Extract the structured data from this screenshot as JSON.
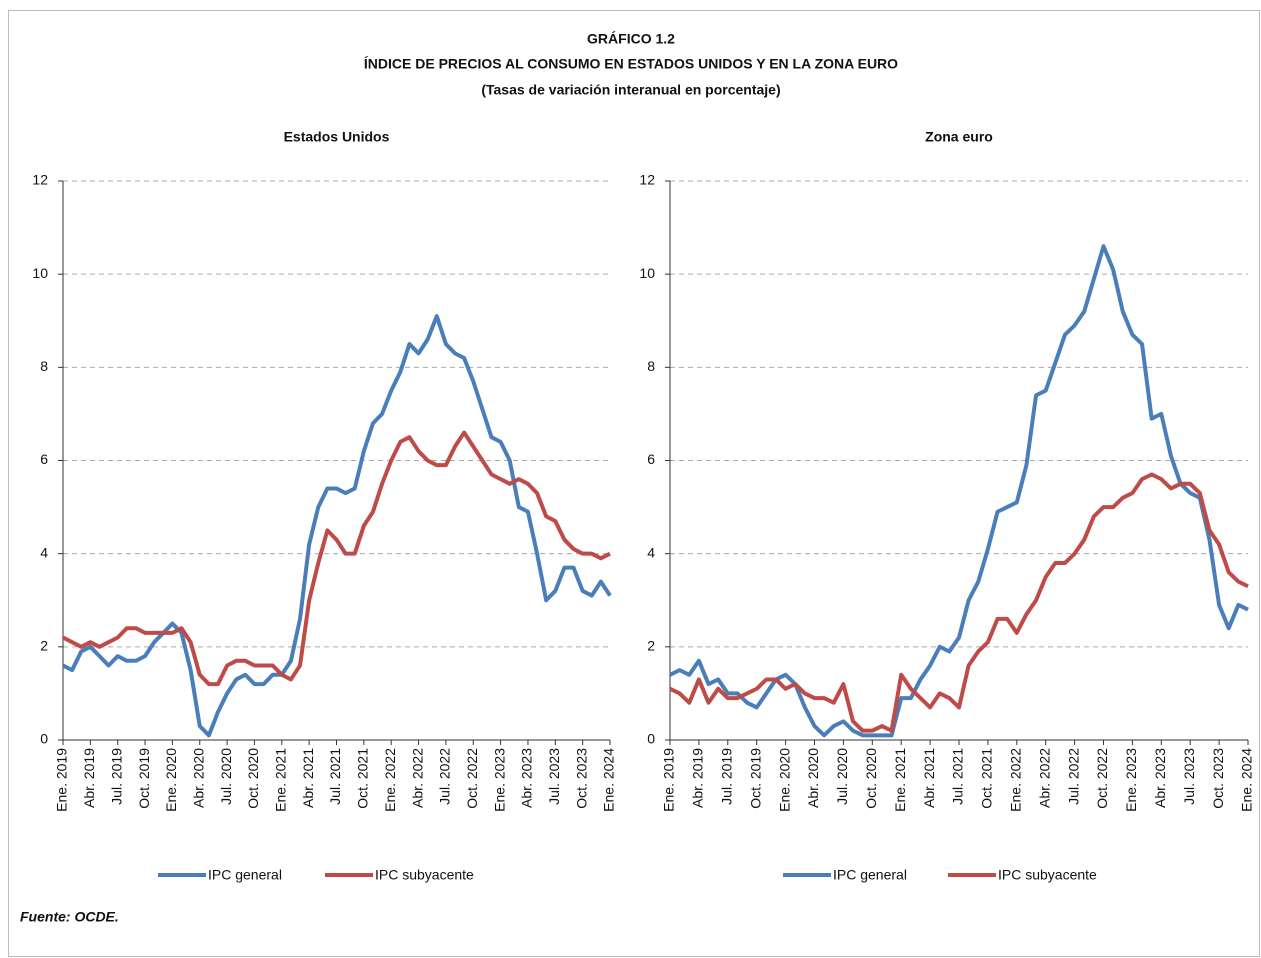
{
  "header": {
    "title": "GRÁFICO 1.2",
    "subtitle": "ÍNDICE DE PRECIOS AL CONSUMO EN ESTADOS UNIDOS Y EN LA ZONA EURO",
    "note": "(Tasas de variación interanual en porcentaje)"
  },
  "chart_data": [
    {
      "type": "line",
      "title": "Estados Unidos",
      "categories": [
        "Ene. 2019",
        null,
        null,
        "Abr. 2019",
        null,
        null,
        "Jul. 2019",
        null,
        null,
        "Oct. 2019",
        null,
        null,
        "Ene. 2020",
        null,
        null,
        "Abr. 2020",
        null,
        null,
        "Jul. 2020",
        null,
        null,
        "Oct. 2020",
        null,
        null,
        "Ene. 2021",
        null,
        null,
        "Abr. 2021",
        null,
        null,
        "Jul. 2021",
        null,
        null,
        "Oct. 2021",
        null,
        null,
        "Ene. 2022",
        null,
        null,
        "Abr. 2022",
        null,
        null,
        "Jul. 2022",
        null,
        null,
        "Oct. 2022",
        null,
        null,
        "Ene. 2023",
        null,
        null,
        "Abr. 2023",
        null,
        null,
        "Jul. 2023",
        null,
        null,
        "Oct. 2023",
        null,
        null,
        "Ene. 2024"
      ],
      "series": [
        {
          "name": "IPC general",
          "color": "#4a7ebb",
          "values": [
            1.6,
            1.5,
            1.9,
            2.0,
            1.8,
            1.6,
            1.8,
            1.7,
            1.7,
            1.8,
            2.1,
            2.3,
            2.5,
            2.3,
            1.5,
            0.3,
            0.1,
            0.6,
            1.0,
            1.3,
            1.4,
            1.2,
            1.2,
            1.4,
            1.4,
            1.7,
            2.6,
            4.2,
            5.0,
            5.4,
            5.4,
            5.3,
            5.4,
            6.2,
            6.8,
            7.0,
            7.5,
            7.9,
            8.5,
            8.3,
            8.6,
            9.1,
            8.5,
            8.3,
            8.2,
            7.7,
            7.1,
            6.5,
            6.4,
            6.0,
            5.0,
            4.9,
            4.0,
            3.0,
            3.2,
            3.7,
            3.7,
            3.2,
            3.1,
            3.4,
            3.1
          ]
        },
        {
          "name": "IPC subyacente",
          "color": "#be4b48",
          "values": [
            2.2,
            2.1,
            2.0,
            2.1,
            2.0,
            2.1,
            2.2,
            2.4,
            2.4,
            2.3,
            2.3,
            2.3,
            2.3,
            2.4,
            2.1,
            1.4,
            1.2,
            1.2,
            1.6,
            1.7,
            1.7,
            1.6,
            1.6,
            1.6,
            1.4,
            1.3,
            1.6,
            3.0,
            3.8,
            4.5,
            4.3,
            4.0,
            4.0,
            4.6,
            4.9,
            5.5,
            6.0,
            6.4,
            6.5,
            6.2,
            6.0,
            5.9,
            5.9,
            6.3,
            6.6,
            6.3,
            6.0,
            5.7,
            5.6,
            5.5,
            5.6,
            5.5,
            5.3,
            4.8,
            4.7,
            4.3,
            4.1,
            4.0,
            4.0,
            3.9,
            4.0
          ]
        }
      ],
      "ylim": [
        0,
        12
      ],
      "yticks": [
        0,
        2,
        4,
        6,
        8,
        10,
        12
      ],
      "grid": true
    },
    {
      "type": "line",
      "title": "Zona euro",
      "categories": [
        "Ene. 2019",
        null,
        null,
        "Abr. 2019",
        null,
        null,
        "Jul. 2019",
        null,
        null,
        "Oct. 2019",
        null,
        null,
        "Ene. 2020",
        null,
        null,
        "Abr. 2020",
        null,
        null,
        "Jul. 2020",
        null,
        null,
        "Oct. 2020",
        null,
        null,
        "Ene. 2021",
        null,
        null,
        "Abr. 2021",
        null,
        null,
        "Jul. 2021",
        null,
        null,
        "Oct. 2021",
        null,
        null,
        "Ene. 2022",
        null,
        null,
        "Abr. 2022",
        null,
        null,
        "Jul. 2022",
        null,
        null,
        "Oct. 2022",
        null,
        null,
        "Ene. 2023",
        null,
        null,
        "Abr. 2023",
        null,
        null,
        "Jul. 2023",
        null,
        null,
        "Oct. 2023",
        null,
        null,
        "Ene. 2024"
      ],
      "series": [
        {
          "name": "IPC general",
          "color": "#4a7ebb",
          "values": [
            1.4,
            1.5,
            1.4,
            1.7,
            1.2,
            1.3,
            1.0,
            1.0,
            0.8,
            0.7,
            1.0,
            1.3,
            1.4,
            1.2,
            0.7,
            0.3,
            0.1,
            0.3,
            0.4,
            0.2,
            0.1,
            0.1,
            0.1,
            0.1,
            0.9,
            0.9,
            1.3,
            1.6,
            2.0,
            1.9,
            2.2,
            3.0,
            3.4,
            4.1,
            4.9,
            5.0,
            5.1,
            5.9,
            7.4,
            7.5,
            8.1,
            8.7,
            8.9,
            9.2,
            9.9,
            10.6,
            10.1,
            9.2,
            8.7,
            8.5,
            6.9,
            7.0,
            6.1,
            5.5,
            5.3,
            5.2,
            4.3,
            2.9,
            2.4,
            2.9,
            2.8
          ]
        },
        {
          "name": "IPC subyacente",
          "color": "#be4b48",
          "values": [
            1.1,
            1.0,
            0.8,
            1.3,
            0.8,
            1.1,
            0.9,
            0.9,
            1.0,
            1.1,
            1.3,
            1.3,
            1.1,
            1.2,
            1.0,
            0.9,
            0.9,
            0.8,
            1.2,
            0.4,
            0.2,
            0.2,
            0.3,
            0.2,
            1.4,
            1.1,
            0.9,
            0.7,
            1.0,
            0.9,
            0.7,
            1.6,
            1.9,
            2.1,
            2.6,
            2.6,
            2.3,
            2.7,
            3.0,
            3.5,
            3.8,
            3.8,
            4.0,
            4.3,
            4.8,
            5.0,
            5.0,
            5.2,
            5.3,
            5.6,
            5.7,
            5.6,
            5.4,
            5.5,
            5.5,
            5.3,
            4.5,
            4.2,
            3.6,
            3.4,
            3.3
          ]
        }
      ],
      "ylim": [
        0,
        12
      ],
      "yticks": [
        0,
        2,
        4,
        6,
        8,
        10,
        12
      ],
      "grid": true
    }
  ],
  "source": "Fuente: OCDE."
}
